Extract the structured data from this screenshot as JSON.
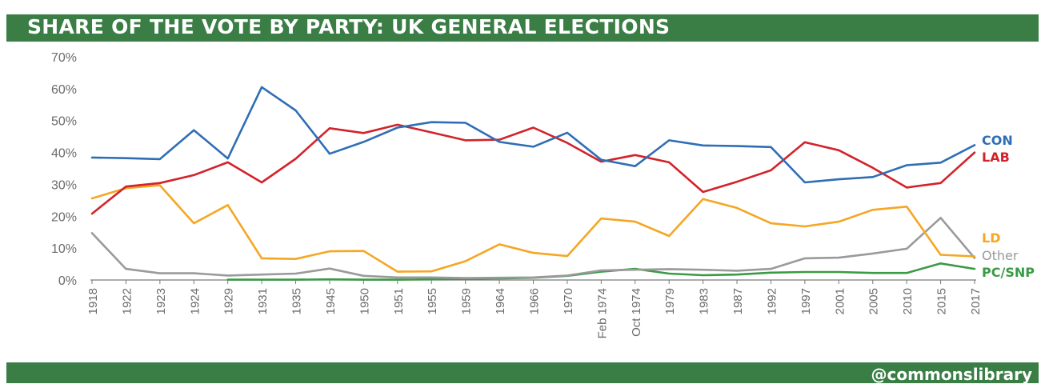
{
  "header": {
    "title": "SHARE OF THE VOTE BY PARTY: UK GENERAL ELECTIONS"
  },
  "footer": {
    "handle": "@commonslibrary"
  },
  "chart_data": {
    "type": "line",
    "title": "SHARE OF THE VOTE BY PARTY: UK GENERAL ELECTIONS",
    "xlabel": "",
    "ylabel": "",
    "ylim": [
      0,
      70
    ],
    "yticks": [
      0,
      10,
      20,
      30,
      40,
      50,
      60,
      70
    ],
    "ytick_labels": [
      "0%",
      "10%",
      "20%",
      "30%",
      "40%",
      "50%",
      "60%",
      "70%"
    ],
    "grid": false,
    "legend": "right, labels at line ends",
    "categories": [
      "1918",
      "1922",
      "1923",
      "1924",
      "1929",
      "1931",
      "1935",
      "1945",
      "1950",
      "1951",
      "1955",
      "1959",
      "1964",
      "1966",
      "1970",
      "Feb 1974",
      "Oct 1974",
      "1979",
      "1983",
      "1987",
      "1992",
      "1997",
      "2001",
      "2005",
      "2010",
      "2015",
      "2017"
    ],
    "series": [
      {
        "name": "CON",
        "color": "#2f6eb5",
        "values": [
          38.4,
          38.2,
          37.9,
          47.0,
          38.1,
          60.5,
          53.2,
          39.6,
          43.3,
          47.8,
          49.5,
          49.3,
          43.3,
          41.8,
          46.2,
          37.7,
          35.7,
          43.8,
          42.2,
          42.0,
          41.7,
          30.6,
          31.6,
          32.3,
          36.0,
          36.8,
          42.3
        ]
      },
      {
        "name": "LAB",
        "color": "#d2232a",
        "values": [
          20.8,
          29.3,
          30.4,
          32.9,
          36.9,
          30.6,
          38.0,
          47.6,
          46.1,
          48.7,
          46.3,
          43.8,
          44.0,
          47.8,
          43.0,
          37.1,
          39.2,
          36.9,
          27.6,
          30.8,
          34.4,
          43.2,
          40.7,
          35.2,
          29.0,
          30.4,
          40.0
        ]
      },
      {
        "name": "LD",
        "color": "#f5a623",
        "values": [
          25.6,
          28.8,
          29.7,
          17.8,
          23.5,
          6.8,
          6.6,
          9.0,
          9.1,
          2.6,
          2.7,
          5.9,
          11.2,
          8.5,
          7.5,
          19.3,
          18.3,
          13.8,
          25.4,
          22.6,
          17.8,
          16.8,
          18.3,
          22.0,
          23.0,
          7.9,
          7.4
        ]
      },
      {
        "name": "Other",
        "color": "#9a9a9a",
        "values": [
          14.7,
          3.5,
          2.1,
          2.1,
          1.4,
          1.7,
          2.0,
          3.6,
          1.3,
          0.8,
          0.8,
          0.6,
          0.7,
          0.8,
          1.4,
          3.0,
          3.2,
          3.4,
          3.2,
          2.9,
          3.5,
          6.8,
          7.0,
          8.3,
          9.8,
          19.5,
          6.9
        ]
      },
      {
        "name": "PC/SNP",
        "color": "#3a9a45",
        "values": [
          null,
          null,
          null,
          null,
          0.1,
          0.1,
          0.1,
          0.2,
          0.1,
          0.1,
          0.2,
          0.4,
          0.5,
          0.7,
          1.3,
          2.6,
          3.5,
          2.0,
          1.5,
          1.7,
          2.3,
          2.5,
          2.5,
          2.2,
          2.2,
          5.2,
          3.5
        ]
      }
    ]
  }
}
